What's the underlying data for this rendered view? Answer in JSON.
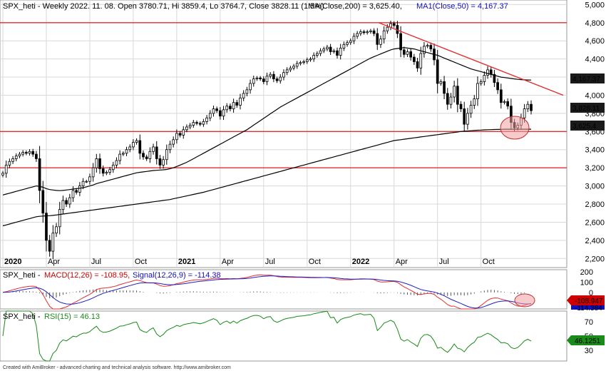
{
  "footer": "Created with AmiBroker - advanced charting and technical analysis software. http://www.amibroker.com",
  "main": {
    "title_prefix": "SPX_heti - Weekly 2022. 11. 08. Open 3780.71, Hi 3859.4, Lo 3764.7, Close 3828.11 (1.5%)",
    "title_ma": "MA(Close,200) = 3,625.40,",
    "title_ma1": "MA1(Close,50) = 4,167.37",
    "price_labels": [
      "4,167.37",
      "3,828.11",
      "3,625.4"
    ]
  },
  "macd": {
    "name": "SPX_heti - ",
    "macd_label": "MACD(12,26) = -108.95,",
    "signal_label": "Signal(12,26,9) = -114.38",
    "value_labels": [
      "-108.947",
      "-114.384"
    ]
  },
  "rsi": {
    "name": "SPX_heti - ",
    "rsi_label": "RSI(15) = 46.13",
    "value_label": "46.1251"
  },
  "colors": {
    "up": "#ffffff",
    "down": "#000000",
    "ma": "#000000",
    "trend": "#e03030",
    "macd": "#e03030",
    "signal": "#2020c0",
    "rsi": "#1a8a1a",
    "circle_fill": "#f0a0a0",
    "grid": "#d8d8d8",
    "label_black": "#000000",
    "label_red": "#d00000",
    "label_blue": "#1010c0",
    "label_green": "#1a8a1a"
  },
  "chart_data": [
    {
      "type": "candlestick",
      "y_ticks": [
        2200,
        2400,
        2600,
        2800,
        3000,
        3200,
        3400,
        3600,
        3800,
        4000,
        4200,
        4400,
        4600,
        4800,
        5000
      ],
      "y_tick_labels": [
        "2,200",
        "2,400",
        "2,600",
        "2,800",
        "3,000",
        "3,200",
        "3,400",
        "3,600",
        "3,800",
        "4,000",
        "4,200",
        "4,400",
        "4,600",
        "4,800",
        "5,000"
      ],
      "x_tick_labels": [
        "2020",
        "Apr",
        "Jul",
        "Oct",
        "2021",
        "Apr",
        "Jul",
        "Oct",
        "2022",
        "Apr",
        "Jul",
        "Oct"
      ],
      "ylim": [
        2100,
        5050
      ],
      "horizontal_lines": [
        4800,
        3600,
        3200
      ],
      "trendline": {
        "from": [
          "2022-01",
          4800
        ],
        "to": [
          "2022-12",
          4000
        ]
      },
      "weekly_close": [
        3140,
        3230,
        3270,
        3300,
        3330,
        3350,
        3370,
        3360,
        3380,
        3350,
        3300,
        2950,
        2700,
        2400,
        2280,
        2480,
        2550,
        2740,
        2840,
        2800,
        2870,
        2950,
        2930,
        3000,
        3050,
        3050,
        3100,
        3200,
        3300,
        3190,
        3140,
        3150,
        3180,
        3230,
        3280,
        3350,
        3360,
        3400,
        3430,
        3480,
        3500,
        3360,
        3320,
        3300,
        3380,
        3430,
        3300,
        3230,
        3290,
        3400,
        3460,
        3510,
        3580,
        3560,
        3620,
        3650,
        3670,
        3700,
        3690,
        3680,
        3710,
        3750,
        3800,
        3850,
        3830,
        3770,
        3840,
        3880,
        3850,
        3920,
        3890,
        3970,
        4020,
        4060,
        4130,
        4180,
        4190,
        4180,
        4150,
        4210,
        4230,
        4180,
        4160,
        4200,
        4250,
        4280,
        4300,
        4320,
        4350,
        4360,
        4370,
        4390,
        4400,
        4440,
        4460,
        4490,
        4510,
        4530,
        4480,
        4490,
        4440,
        4520,
        4560,
        4580,
        4600,
        4650,
        4680,
        4700,
        4690,
        4700,
        4710,
        4680,
        4560,
        4620,
        4710,
        4750,
        4790,
        4770,
        4680,
        4500,
        4450,
        4480,
        4420,
        4370,
        4300,
        4460,
        4540,
        4550,
        4510,
        4390,
        4130,
        4150,
        4020,
        3900,
        3980,
        4100,
        3900,
        3850,
        3680,
        3800,
        3890,
        3960,
        4130,
        4150,
        4220,
        4280,
        4230,
        4140,
        4060,
        3920,
        3930,
        3880,
        3700,
        3640,
        3670,
        3750,
        3850,
        3900,
        3830
      ],
      "ma50": [
        2900,
        2910,
        2920,
        2930,
        2940,
        2950,
        2960,
        2970,
        2980,
        2990,
        3000,
        2995,
        2985,
        2970,
        2960,
        2955,
        2950,
        2948,
        2950,
        2955,
        2960,
        2965,
        2970,
        2975,
        2980,
        2990,
        3000,
        3010,
        3025,
        3035,
        3045,
        3055,
        3065,
        3075,
        3085,
        3095,
        3105,
        3115,
        3125,
        3135,
        3145,
        3150,
        3155,
        3160,
        3165,
        3170,
        3172,
        3175,
        3178,
        3182,
        3190,
        3200,
        3215,
        3230,
        3245,
        3260,
        3280,
        3300,
        3320,
        3340,
        3360,
        3380,
        3400,
        3420,
        3440,
        3460,
        3480,
        3500,
        3520,
        3540,
        3560,
        3580,
        3600,
        3620,
        3645,
        3670,
        3695,
        3720,
        3745,
        3770,
        3795,
        3820,
        3845,
        3870,
        3890,
        3910,
        3930,
        3950,
        3970,
        3990,
        4010,
        4030,
        4050,
        4070,
        4090,
        4110,
        4130,
        4150,
        4170,
        4190,
        4210,
        4230,
        4250,
        4270,
        4290,
        4310,
        4330,
        4350,
        4370,
        4390,
        4410,
        4425,
        4440,
        4455,
        4470,
        4485,
        4500,
        4510,
        4515,
        4520,
        4525,
        4520,
        4515,
        4510,
        4500,
        4490,
        4480,
        4470,
        4460,
        4450,
        4440,
        4425,
        4410,
        4395,
        4380,
        4365,
        4350,
        4335,
        4320,
        4305,
        4290,
        4280,
        4270,
        4260,
        4250,
        4240,
        4230,
        4220,
        4210,
        4200,
        4195,
        4190,
        4185,
        4180,
        4175,
        4172,
        4170,
        4168,
        4167
      ],
      "ma200": [
        2560,
        2570,
        2580,
        2590,
        2600,
        2610,
        2620,
        2630,
        2640,
        2650,
        2660,
        2665,
        2668,
        2670,
        2672,
        2675,
        2680,
        2685,
        2690,
        2695,
        2700,
        2705,
        2710,
        2715,
        2720,
        2725,
        2730,
        2735,
        2740,
        2745,
        2750,
        2755,
        2760,
        2765,
        2770,
        2775,
        2780,
        2785,
        2790,
        2795,
        2800,
        2805,
        2810,
        2815,
        2820,
        2825,
        2830,
        2835,
        2840,
        2845,
        2850,
        2858,
        2866,
        2874,
        2882,
        2890,
        2898,
        2906,
        2914,
        2922,
        2930,
        2940,
        2950,
        2960,
        2970,
        2980,
        2990,
        3000,
        3010,
        3020,
        3030,
        3040,
        3050,
        3060,
        3070,
        3080,
        3090,
        3100,
        3110,
        3120,
        3130,
        3140,
        3150,
        3160,
        3170,
        3180,
        3190,
        3200,
        3210,
        3220,
        3230,
        3240,
        3250,
        3260,
        3270,
        3280,
        3290,
        3300,
        3310,
        3320,
        3330,
        3340,
        3350,
        3360,
        3370,
        3380,
        3390,
        3400,
        3410,
        3420,
        3430,
        3440,
        3450,
        3460,
        3470,
        3480,
        3490,
        3500,
        3505,
        3510,
        3515,
        3520,
        3525,
        3530,
        3535,
        3540,
        3545,
        3550,
        3555,
        3560,
        3565,
        3570,
        3575,
        3580,
        3585,
        3590,
        3595,
        3600,
        3603,
        3606,
        3609,
        3612,
        3614,
        3616,
        3618,
        3620,
        3621,
        3622,
        3623,
        3624,
        3625,
        3625,
        3625,
        3625,
        3625,
        3625,
        3625,
        3625,
        3625
      ]
    },
    {
      "type": "line",
      "name": "MACD",
      "y_ticks": [
        200,
        100,
        0
      ],
      "y_tick_labels": [
        "200",
        "100",
        "0"
      ],
      "ylim": [
        -160,
        220
      ]
    },
    {
      "type": "line",
      "name": "RSI",
      "y_ticks": [
        70,
        50,
        30
      ],
      "y_tick_labels": [
        "70",
        "50",
        "30"
      ],
      "ylim": [
        15,
        85
      ]
    }
  ]
}
